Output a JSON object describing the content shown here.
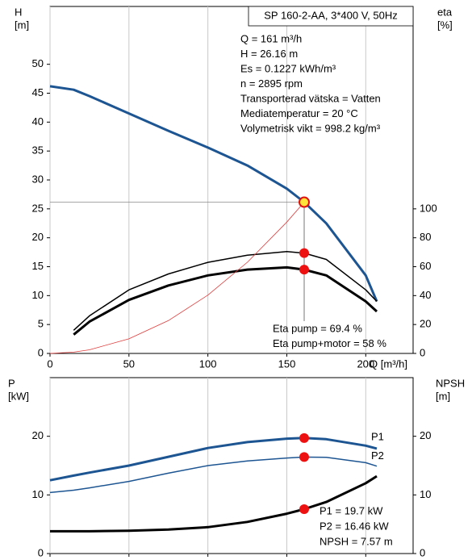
{
  "chart_data": [
    {
      "type": "line",
      "model": "SP 160-2-AA, 3*400 V, 50Hz",
      "info": [
        "Q = 161 m³/h",
        "H = 26.16 m",
        "Es = 0.1227 kWh/m³",
        "n = 2895 rpm",
        "Transporterad vätska = Vatten",
        "Mediatemperatur = 20 °C",
        "Volymetrisk vikt = 998.2 kg/m³"
      ],
      "annotations": [
        "Eta pump = 69.4 %",
        "Eta pump+motor = 58 %"
      ],
      "ylabel": [
        "H",
        "[m]"
      ],
      "y2label": [
        "eta",
        "[%]"
      ],
      "xlabel": "Q [m³/h]",
      "xlim": [
        0,
        230
      ],
      "xticks": [
        0,
        50,
        100,
        150,
        200
      ],
      "xtick_labels": true,
      "ylim": [
        0,
        60
      ],
      "yticks": [
        0,
        5,
        10,
        15,
        20,
        25,
        30,
        35,
        40,
        45,
        50
      ],
      "y2lim": [
        0,
        240
      ],
      "y2ticks": [
        0,
        20,
        40,
        60,
        80,
        100
      ],
      "grid": true,
      "operating_q": 161,
      "x": [
        0,
        15,
        25,
        50,
        75,
        100,
        125,
        150,
        161,
        175,
        200,
        207
      ],
      "series": [
        {
          "color": "#1d5592",
          "linewidth": 3,
          "marker_color": "#ffe23a",
          "values": [
            46.2,
            45.6,
            44.5,
            41.5,
            38.5,
            35.6,
            32.5,
            28.5,
            26.16,
            22.5,
            13.5,
            9
          ]
        },
        {
          "color": "#000000",
          "linewidth": 1.5,
          "marker_color": "#ee1111",
          "axis": "y2",
          "values": [
            null,
            16,
            26,
            44,
            55,
            63,
            68,
            70.5,
            69.4,
            65,
            44,
            36
          ]
        },
        {
          "color": "#000000",
          "linewidth": 3,
          "marker_color": "#ee1111",
          "axis": "y2",
          "values": [
            null,
            13,
            22,
            37,
            47,
            54,
            58,
            59.5,
            58,
            54,
            36,
            29
          ]
        },
        {
          "color": "#e03a3a",
          "linewidth": 0.8,
          "values": [
            0,
            0.23,
            0.63,
            2.52,
            5.68,
            10.09,
            15.77,
            22.71,
            26.16,
            null,
            null,
            null
          ]
        }
      ]
    },
    {
      "type": "line",
      "annotations": [
        "P1 = 19.7 kW",
        "P2 = 16.46 kW",
        "NPSH = 7.57 m"
      ],
      "ylabel": [
        "P",
        "[kW]"
      ],
      "y2label": [
        "NPSH",
        "[m]"
      ],
      "xlim": [
        0,
        230
      ],
      "xticks": [
        0,
        50,
        100,
        150,
        200
      ],
      "xtick_labels": false,
      "ylim": [
        0,
        30
      ],
      "yticks": [
        0,
        10,
        20
      ],
      "y2lim": [
        0,
        30
      ],
      "y2ticks": [
        0,
        10,
        20
      ],
      "grid": true,
      "operating_q": 161,
      "x": [
        0,
        15,
        25,
        50,
        75,
        100,
        125,
        150,
        161,
        175,
        200,
        207
      ],
      "series": [
        {
          "name": "P1",
          "color": "#1d5592",
          "linewidth": 3,
          "marker_color": "#ee1111",
          "values": [
            12.5,
            13.3,
            13.8,
            15,
            16.5,
            18,
            19,
            19.6,
            19.7,
            19.5,
            18.4,
            17.9
          ]
        },
        {
          "name": "P2",
          "color": "#1d5592",
          "linewidth": 1.5,
          "marker_color": "#ee1111",
          "values": [
            10.4,
            10.8,
            11.2,
            12.3,
            13.7,
            15,
            15.8,
            16.3,
            16.46,
            16.4,
            15.5,
            14.9
          ]
        },
        {
          "color": "#000000",
          "linewidth": 3,
          "marker_color": "#ee1111",
          "axis": "y2",
          "values": [
            3.8,
            3.8,
            3.8,
            3.9,
            4.1,
            4.5,
            5.4,
            6.8,
            7.57,
            8.8,
            12,
            13.2
          ]
        }
      ]
    }
  ]
}
